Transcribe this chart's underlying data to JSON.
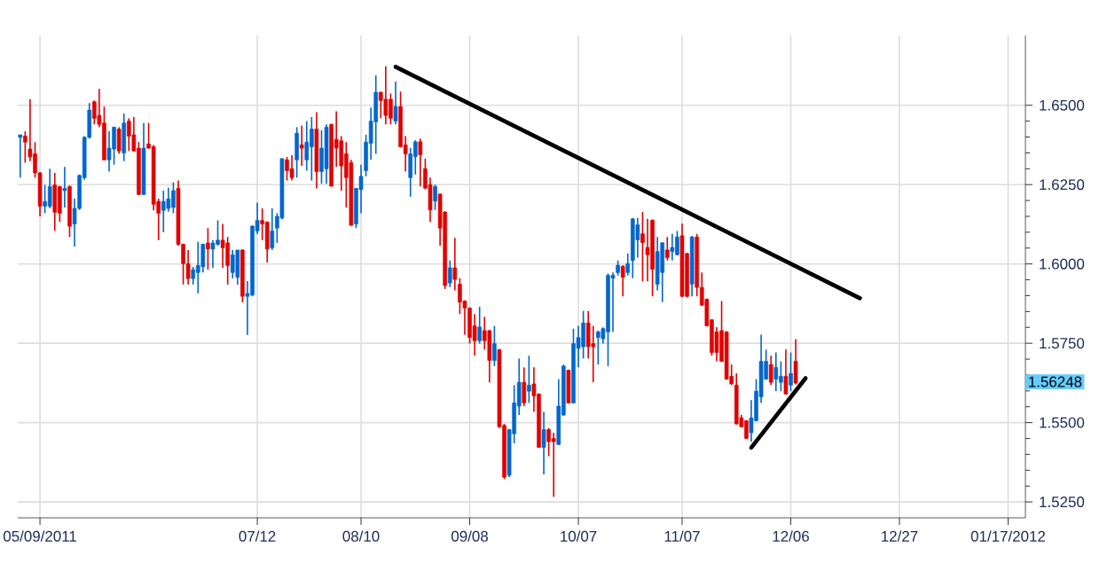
{
  "chart_data": {
    "type": "candlestick",
    "categories": [
      null,
      null,
      null,
      null,
      "05/09/2011",
      null,
      null,
      null,
      null,
      null,
      null,
      null,
      null,
      null,
      null,
      null,
      null,
      null,
      null,
      null,
      null,
      null,
      null,
      null,
      null,
      null,
      null,
      null,
      null,
      null,
      null,
      null,
      null,
      null,
      null,
      null,
      null,
      null,
      null,
      null,
      null,
      null,
      null,
      null,
      null,
      null,
      null,
      null,
      "07/12",
      null,
      null,
      null,
      null,
      null,
      null,
      null,
      null,
      null,
      null,
      null,
      null,
      null,
      null,
      null,
      null,
      null,
      null,
      null,
      null,
      "08/10",
      null,
      null,
      null,
      null,
      null,
      null,
      null,
      null,
      null,
      null,
      null,
      null,
      null,
      null,
      null,
      null,
      null,
      null,
      null,
      null,
      null,
      "09/08",
      null,
      null,
      null,
      null,
      null,
      null,
      null,
      null,
      null,
      null,
      null,
      null,
      null,
      null,
      null,
      null,
      null,
      null,
      null,
      null,
      null,
      "10/07",
      null,
      null,
      null,
      null,
      null,
      null,
      null,
      null,
      null,
      null,
      null,
      null,
      null,
      null,
      null,
      null,
      null,
      null,
      null,
      null,
      "11/07",
      null,
      null,
      null,
      null,
      null,
      null,
      null,
      null,
      null,
      null,
      null,
      null,
      null,
      null,
      null,
      null,
      null,
      null,
      null,
      null,
      null,
      "12/06",
      null,
      null,
      null,
      null,
      null,
      null,
      null,
      null,
      null,
      null,
      null,
      null,
      null,
      null,
      null,
      null,
      null,
      null,
      null,
      null,
      null,
      "12/27",
      null,
      null,
      null,
      null,
      null,
      null,
      null,
      null,
      null,
      null,
      null,
      null,
      null,
      null,
      null,
      null,
      null,
      null,
      null,
      null,
      null,
      "01/17/2012",
      null,
      null,
      null
    ],
    "ohlc": [
      [
        1.6399,
        1.6407,
        1.6272,
        1.6407
      ],
      [
        1.6403,
        1.6418,
        1.6319,
        1.6384
      ],
      [
        1.6362,
        1.6519,
        1.6324,
        1.6337
      ],
      [
        1.6347,
        1.6384,
        1.6272,
        1.6287
      ],
      [
        1.6287,
        1.629,
        1.615,
        1.6182
      ],
      [
        1.6182,
        1.6249,
        1.616,
        1.6197
      ],
      [
        1.6182,
        1.63,
        1.6175,
        1.6244
      ],
      [
        1.6249,
        1.6287,
        1.6104,
        1.6163
      ],
      [
        1.6244,
        1.6246,
        1.6132,
        1.616
      ],
      [
        1.6231,
        1.6306,
        1.6178,
        1.6238
      ],
      [
        1.6244,
        1.6247,
        1.6085,
        1.6119
      ],
      [
        1.6126,
        1.6206,
        1.6055,
        1.6175
      ],
      [
        1.6175,
        1.6282,
        1.617,
        1.6279
      ],
      [
        1.6272,
        1.6403,
        1.6265,
        1.6399
      ],
      [
        1.6399,
        1.6507,
        1.6395,
        1.6485
      ],
      [
        1.6511,
        1.6515,
        1.644,
        1.6459
      ],
      [
        1.6468,
        1.6552,
        1.6431,
        1.644
      ],
      [
        1.6444,
        1.6496,
        1.6326,
        1.6328
      ],
      [
        1.6328,
        1.6418,
        1.6291,
        1.6365
      ],
      [
        1.6362,
        1.6433,
        1.6313,
        1.6431
      ],
      [
        1.6425,
        1.6431,
        1.6347,
        1.6356
      ],
      [
        1.635,
        1.6474,
        1.6324,
        1.6444
      ],
      [
        1.645,
        1.6459,
        1.6356,
        1.6403
      ],
      [
        1.6407,
        1.6463,
        1.6354,
        1.6356
      ],
      [
        1.6365,
        1.6384,
        1.6217,
        1.6219
      ],
      [
        1.6219,
        1.6444,
        1.6217,
        1.6365
      ],
      [
        1.6378,
        1.6444,
        1.6363,
        1.6365
      ],
      [
        1.6369,
        1.6375,
        1.6169,
        1.6188
      ],
      [
        1.6197,
        1.6206,
        1.6075,
        1.616
      ],
      [
        1.6169,
        1.6231,
        1.61,
        1.6197
      ],
      [
        1.6175,
        1.624,
        1.6165,
        1.6205
      ],
      [
        1.6178,
        1.6257,
        1.616,
        1.6231
      ],
      [
        1.6238,
        1.6263,
        1.6057,
        1.6062
      ],
      [
        1.6062,
        1.6064,
        1.5935,
        1.6001
      ],
      [
        1.6001,
        1.6044,
        1.5935,
        1.5954
      ],
      [
        1.5954,
        1.5991,
        1.5935,
        1.5982
      ],
      [
        1.5973,
        1.607,
        1.5907,
        1.5995
      ],
      [
        1.5991,
        1.6064,
        1.5973,
        1.6062
      ],
      [
        1.6066,
        1.6113,
        1.5982,
        1.6047
      ],
      [
        1.6047,
        1.6075,
        1.5988,
        1.6066
      ],
      [
        1.6062,
        1.6137,
        1.6057,
        1.6075
      ],
      [
        1.6075,
        1.6126,
        1.5988,
        1.6051
      ],
      [
        1.6066,
        1.6085,
        1.5935,
        1.5995
      ],
      [
        1.5973,
        1.6044,
        1.5954,
        1.6029
      ],
      [
        1.5958,
        1.6044,
        1.5935,
        1.6044
      ],
      [
        1.6044,
        1.6046,
        1.5879,
        1.5898
      ],
      [
        1.5898,
        1.5946,
        1.5776,
        1.5907
      ],
      [
        1.5902,
        1.6122,
        1.5898,
        1.6119
      ],
      [
        1.6104,
        1.6193,
        1.6094,
        1.6137
      ],
      [
        1.6137,
        1.6175,
        1.6075,
        1.6126
      ],
      [
        1.6132,
        1.6134,
        1.6004,
        1.6047
      ],
      [
        1.6051,
        1.6175,
        1.6044,
        1.6104
      ],
      [
        1.6113,
        1.616,
        1.6066,
        1.615
      ],
      [
        1.6145,
        1.6332,
        1.614,
        1.6332
      ],
      [
        1.6328,
        1.6337,
        1.6263,
        1.6294
      ],
      [
        1.63,
        1.6343,
        1.6263,
        1.6272
      ],
      [
        1.6328,
        1.6431,
        1.6272,
        1.6412
      ],
      [
        1.6375,
        1.6436,
        1.6309,
        1.6365
      ],
      [
        1.6328,
        1.645,
        1.6294,
        1.6384
      ],
      [
        1.6369,
        1.6463,
        1.6263,
        1.6425
      ],
      [
        1.6425,
        1.6478,
        1.6238,
        1.6291
      ],
      [
        1.6291,
        1.6421,
        1.6253,
        1.6365
      ],
      [
        1.63,
        1.644,
        1.6253,
        1.6431
      ],
      [
        1.644,
        1.6442,
        1.6244,
        1.6245
      ],
      [
        1.6393,
        1.6481,
        1.6306,
        1.6365
      ],
      [
        1.6388,
        1.6403,
        1.6231,
        1.6309
      ],
      [
        1.6347,
        1.6384,
        1.6178,
        1.6272
      ],
      [
        1.6319,
        1.6328,
        1.612,
        1.6122
      ],
      [
        1.6126,
        1.624,
        1.6113,
        1.6238
      ],
      [
        1.6234,
        1.6313,
        1.616,
        1.6276
      ],
      [
        1.6294,
        1.6407,
        1.6276,
        1.6384
      ],
      [
        1.638,
        1.6493,
        1.6328,
        1.645
      ],
      [
        1.6448,
        1.6594,
        1.6347,
        1.6541
      ],
      [
        1.6541,
        1.6543,
        1.6459,
        1.6515
      ],
      [
        1.6519,
        1.6623,
        1.644,
        1.6468
      ],
      [
        1.6519,
        1.6537,
        1.644,
        1.6459
      ],
      [
        1.645,
        1.6575,
        1.644,
        1.6496
      ],
      [
        1.6496,
        1.6543,
        1.6367,
        1.6369
      ],
      [
        1.6375,
        1.6403,
        1.6291,
        1.6347
      ],
      [
        1.6272,
        1.6365,
        1.6212,
        1.6347
      ],
      [
        1.6338,
        1.639,
        1.6282,
        1.6385
      ],
      [
        1.6385,
        1.6395,
        1.6244,
        1.6344
      ],
      [
        1.63,
        1.6332,
        1.6235,
        1.6239
      ],
      [
        1.625,
        1.6272,
        1.6132,
        1.617
      ],
      [
        1.6198,
        1.625,
        1.617,
        1.6244
      ],
      [
        1.622,
        1.6222,
        1.6057,
        1.6113
      ],
      [
        1.6164,
        1.6166,
        1.5921,
        1.5932
      ],
      [
        1.594,
        1.6011,
        1.5927,
        1.5988
      ],
      [
        1.5988,
        1.6082,
        1.5917,
        1.5951
      ],
      [
        1.5936,
        1.5955,
        1.5842,
        1.588
      ],
      [
        1.5883,
        1.5885,
        1.5777,
        1.5861
      ],
      [
        1.5861,
        1.5863,
        1.5749,
        1.5768
      ],
      [
        1.5805,
        1.5842,
        1.5711,
        1.5758
      ],
      [
        1.5758,
        1.5865,
        1.5749,
        1.5801
      ],
      [
        1.579,
        1.5833,
        1.573,
        1.5758
      ],
      [
        1.579,
        1.5792,
        1.5627,
        1.5696
      ],
      [
        1.5696,
        1.5805,
        1.5678,
        1.5749
      ],
      [
        1.573,
        1.5732,
        1.5483,
        1.5487
      ],
      [
        1.5491,
        1.5496,
        1.5322,
        1.5328
      ],
      [
        1.5334,
        1.548,
        1.5328,
        1.5478
      ],
      [
        1.5465,
        1.5618,
        1.5435,
        1.5562
      ],
      [
        1.5552,
        1.5702,
        1.5524,
        1.5627
      ],
      [
        1.5627,
        1.5674,
        1.5552,
        1.5562
      ],
      [
        1.5599,
        1.5711,
        1.5562,
        1.5618
      ],
      [
        1.5622,
        1.5674,
        1.5534,
        1.5584
      ],
      [
        1.559,
        1.5592,
        1.542,
        1.5422
      ],
      [
        1.5422,
        1.5534,
        1.5337,
        1.5478
      ],
      [
        1.5478,
        1.5483,
        1.5394,
        1.544
      ],
      [
        1.545,
        1.5468,
        1.5266,
        1.544
      ],
      [
        1.5431,
        1.5637,
        1.5429,
        1.5552
      ],
      [
        1.5524,
        1.5683,
        1.5521,
        1.5678
      ],
      [
        1.5665,
        1.5667,
        1.556,
        1.5562
      ],
      [
        1.5562,
        1.5796,
        1.556,
        1.5749
      ],
      [
        1.5734,
        1.5805,
        1.5674,
        1.5768
      ],
      [
        1.5739,
        1.5852,
        1.5702,
        1.5814
      ],
      [
        1.5814,
        1.5852,
        1.5702,
        1.5739
      ],
      [
        1.5749,
        1.5805,
        1.5627,
        1.5739
      ],
      [
        1.5768,
        1.579,
        1.5683,
        1.5786
      ],
      [
        1.5764,
        1.58,
        1.5749,
        1.5796
      ],
      [
        1.5786,
        1.597,
        1.5678,
        1.5964
      ],
      [
        1.5955,
        1.5973,
        1.5786,
        1.5964
      ],
      [
        1.5973,
        1.6011,
        1.5964,
        1.5996
      ],
      [
        1.5992,
        1.5996,
        1.5898,
        1.5958
      ],
      [
        1.5973,
        1.6033,
        1.5964,
        1.6001
      ],
      [
        1.6011,
        1.6145,
        1.5955,
        1.6142
      ],
      [
        1.6076,
        1.6145,
        1.602,
        1.6123
      ],
      [
        1.6095,
        1.6164,
        1.5945,
        1.6067
      ],
      [
        1.6052,
        1.6142,
        1.5945,
        1.6029
      ],
      [
        1.6138,
        1.614,
        1.5898,
        1.5983
      ],
      [
        1.5936,
        1.6085,
        1.5917,
        1.6039
      ],
      [
        1.5973,
        1.6067,
        1.588,
        1.6067
      ],
      [
        1.6044,
        1.6085,
        1.6011,
        1.602
      ],
      [
        1.6039,
        1.6095,
        1.6011,
        1.6052
      ],
      [
        1.6029,
        1.6104,
        1.6027,
        1.6085
      ],
      [
        1.6089,
        1.6127,
        1.5896,
        1.5898
      ],
      [
        1.6033,
        1.6035,
        1.5894,
        1.5898
      ],
      [
        1.5936,
        1.6088,
        1.5898,
        1.6085
      ],
      [
        1.6085,
        1.6095,
        1.5898,
        1.5926
      ],
      [
        1.5926,
        1.5973,
        1.5868,
        1.587
      ],
      [
        1.5889,
        1.5891,
        1.5803,
        1.5805
      ],
      [
        1.5824,
        1.5826,
        1.5711,
        1.5721
      ],
      [
        1.5786,
        1.5801,
        1.5693,
        1.5721
      ],
      [
        1.579,
        1.5883,
        1.5691,
        1.5693
      ],
      [
        1.5786,
        1.5788,
        1.5635,
        1.5637
      ],
      [
        1.5646,
        1.5683,
        1.5618,
        1.5622
      ],
      [
        1.5618,
        1.5655,
        1.5494,
        1.5496
      ],
      [
        1.5515,
        1.5524,
        1.5485,
        1.5487
      ],
      [
        1.5506,
        1.5508,
        1.5448,
        1.545
      ],
      [
        1.5468,
        1.5571,
        1.544,
        1.5515
      ],
      [
        1.5506,
        1.5637,
        1.5504,
        1.5599
      ],
      [
        1.5581,
        1.5777,
        1.5562,
        1.5693
      ],
      [
        1.5637,
        1.573,
        1.5635,
        1.5693
      ],
      [
        1.5683,
        1.5711,
        1.5618,
        1.5627
      ],
      [
        1.5637,
        1.5721,
        1.5599,
        1.5674
      ],
      [
        1.5627,
        1.5693,
        1.5599,
        1.5646
      ],
      [
        1.5646,
        1.573,
        1.5588,
        1.559
      ],
      [
        1.5618,
        1.5721,
        1.5599,
        1.5655
      ],
      [
        1.5693,
        1.5763,
        1.562,
        1.56248
      ],
      null,
      null,
      null,
      null,
      null,
      null,
      null,
      null,
      null,
      null,
      null,
      null,
      null,
      null,
      null,
      null,
      null,
      null,
      null,
      null,
      null,
      null,
      null,
      null,
      null,
      null,
      null,
      null,
      null,
      null,
      null,
      null,
      null,
      null,
      null,
      null,
      null,
      null,
      null,
      null,
      null,
      null,
      null,
      null,
      null,
      null
    ],
    "colors": [
      "#0066cc",
      "#e00000",
      "#e00000",
      "#e00000",
      "#e00000",
      "#0066cc",
      "#0066cc",
      "#e00000",
      "#e00000",
      "#0066cc",
      "#e00000",
      "#0066cc",
      "#0066cc",
      "#0066cc",
      "#0066cc",
      "#e00000",
      "#e00000",
      "#e00000",
      "#0066cc",
      "#0066cc",
      "#e00000",
      "#0066cc",
      "#e00000",
      "#e00000",
      "#e00000",
      "#0066cc",
      "#e00000",
      "#e00000",
      "#e00000",
      "#0066cc",
      "#0066cc",
      "#0066cc",
      "#e00000",
      "#e00000",
      "#e00000",
      "#0066cc",
      "#0066cc",
      "#0066cc",
      "#e00000",
      "#0066cc",
      "#0066cc",
      "#e00000",
      "#e00000",
      "#0066cc",
      "#0066cc",
      "#e00000",
      "#0066cc",
      "#0066cc",
      "#0066cc",
      "#e00000",
      "#e00000",
      "#0066cc",
      "#0066cc",
      "#0066cc",
      "#e00000",
      "#e00000",
      "#0066cc",
      "#e00000",
      "#0066cc",
      "#0066cc",
      "#e00000",
      "#0066cc",
      "#0066cc",
      "#e00000",
      "#e00000",
      "#e00000",
      "#e00000",
      "#e00000",
      "#0066cc",
      "#0066cc",
      "#0066cc",
      "#0066cc",
      "#0066cc",
      "#e00000",
      "#e00000",
      "#e00000",
      "#0066cc",
      "#e00000",
      "#e00000",
      "#0066cc",
      "#0066cc",
      "#e00000",
      "#e00000",
      "#e00000",
      "#0066cc",
      "#e00000",
      "#e00000",
      "#0066cc",
      "#e00000",
      "#e00000",
      "#e00000",
      "#e00000",
      "#e00000",
      "#0066cc",
      "#e00000",
      "#e00000",
      "#0066cc",
      "#e00000",
      "#e00000",
      "#0066cc",
      "#0066cc",
      "#0066cc",
      "#e00000",
      "#0066cc",
      "#e00000",
      "#e00000",
      "#0066cc",
      "#e00000",
      "#e00000",
      "#0066cc",
      "#0066cc",
      "#e00000",
      "#0066cc",
      "#0066cc",
      "#0066cc",
      "#e00000",
      "#e00000",
      "#0066cc",
      "#0066cc",
      "#0066cc",
      "#0066cc",
      "#0066cc",
      "#e00000",
      "#0066cc",
      "#0066cc",
      "#0066cc",
      "#e00000",
      "#e00000",
      "#e00000",
      "#0066cc",
      "#0066cc",
      "#e00000",
      "#0066cc",
      "#0066cc",
      "#e00000",
      "#e00000",
      "#0066cc",
      "#e00000",
      "#e00000",
      "#e00000",
      "#e00000",
      "#e00000",
      "#e00000",
      "#e00000",
      "#e00000",
      "#e00000",
      "#e00000",
      "#e00000",
      "#0066cc",
      "#0066cc",
      "#0066cc",
      "#0066cc",
      "#e00000",
      "#0066cc",
      "#0066cc",
      "#e00000",
      "#0066cc",
      "#e00000",
      null,
      null,
      null,
      null,
      null,
      null,
      null,
      null,
      null,
      null,
      null,
      null,
      null,
      null,
      null,
      null,
      null,
      null,
      null,
      null,
      null,
      null,
      null,
      null,
      null,
      null,
      null,
      null,
      null,
      null,
      null,
      null,
      null,
      null,
      null,
      null,
      null,
      null,
      null,
      null,
      null,
      null,
      null,
      null,
      null,
      null
    ],
    "series": [
      {
        "type": "line",
        "color": "#000000",
        "values": [
          null,
          null,
          null,
          null,
          null,
          null,
          null,
          null,
          null,
          null,
          null,
          null,
          null,
          null,
          null,
          null,
          null,
          null,
          null,
          null,
          null,
          null,
          null,
          null,
          null,
          null,
          null,
          null,
          null,
          null,
          null,
          null,
          null,
          null,
          null,
          null,
          null,
          null,
          null,
          null,
          null,
          null,
          null,
          null,
          null,
          null,
          null,
          null,
          null,
          null,
          null,
          null,
          null,
          null,
          null,
          null,
          null,
          null,
          null,
          null,
          null,
          null,
          null,
          null,
          null,
          null,
          null,
          null,
          null,
          null,
          null,
          null,
          null,
          null,
          null,
          null,
          1.6621,
          null,
          null,
          null,
          null,
          null,
          null,
          null,
          null,
          null,
          null,
          null,
          null,
          null,
          null,
          null,
          null,
          null,
          null,
          null,
          null,
          null,
          null,
          null,
          null,
          null,
          null,
          null,
          null,
          null,
          null,
          null,
          null,
          null,
          null,
          null,
          null,
          null,
          null,
          null,
          null,
          null,
          null,
          null,
          null,
          null,
          null,
          null,
          null,
          null,
          null,
          null,
          null,
          null,
          null,
          null,
          null,
          null,
          null,
          null,
          null,
          null,
          null,
          null,
          null,
          null,
          null,
          null,
          null,
          null,
          null,
          null,
          null,
          null,
          null,
          null,
          null,
          null,
          null,
          null,
          null,
          null,
          null,
          null,
          null,
          null,
          null,
          null,
          null,
          null,
          null,
          null,
          null,
          null,
          1.5892,
          null,
          null,
          null,
          null,
          null,
          null,
          null,
          null,
          null,
          null,
          null,
          null,
          null,
          null,
          null,
          null,
          null,
          null,
          null,
          null,
          null,
          null,
          null,
          null,
          null,
          null,
          null,
          null,
          null,
          null,
          null,
          null,
          null
        ]
      },
      {
        "type": "line",
        "color": "#000000",
        "values": [
          null,
          null,
          null,
          null,
          null,
          null,
          null,
          null,
          null,
          null,
          null,
          null,
          null,
          null,
          null,
          null,
          null,
          null,
          null,
          null,
          null,
          null,
          null,
          null,
          null,
          null,
          null,
          null,
          null,
          null,
          null,
          null,
          null,
          null,
          null,
          null,
          null,
          null,
          null,
          null,
          null,
          null,
          null,
          null,
          null,
          null,
          null,
          null,
          null,
          null,
          null,
          null,
          null,
          null,
          null,
          null,
          null,
          null,
          null,
          null,
          null,
          null,
          null,
          null,
          null,
          null,
          null,
          null,
          null,
          null,
          null,
          null,
          null,
          null,
          null,
          null,
          null,
          null,
          null,
          null,
          null,
          null,
          null,
          null,
          null,
          null,
          null,
          null,
          null,
          null,
          null,
          null,
          null,
          null,
          null,
          null,
          null,
          null,
          null,
          null,
          null,
          null,
          null,
          null,
          null,
          null,
          null,
          null,
          null,
          null,
          null,
          null,
          null,
          null,
          null,
          null,
          null,
          null,
          null,
          null,
          null,
          null,
          null,
          null,
          null,
          null,
          null,
          null,
          null,
          null,
          null,
          null,
          null,
          null,
          null,
          null,
          null,
          null,
          null,
          null,
          null,
          null,
          null,
          null,
          null,
          null,
          null,
          null,
          1.5421,
          null,
          null,
          null,
          null,
          null,
          null,
          null,
          null,
          null,
          null,
          1.564,
          null,
          null,
          null,
          null,
          null,
          null,
          null,
          null,
          null,
          null,
          null,
          null,
          null,
          null,
          null,
          null,
          null,
          null,
          null,
          null,
          null,
          null,
          null,
          null,
          null,
          null,
          null,
          null,
          null,
          null,
          null,
          null,
          null,
          null,
          null,
          null,
          null,
          null,
          null,
          null,
          null,
          null,
          null,
          null
        ]
      }
    ],
    "ylim": [
      1.52,
      1.672
    ],
    "yticks": [
      {
        "value": 1.525,
        "label": "1.5250"
      },
      {
        "value": 1.55,
        "label": "1.5500"
      },
      {
        "value": 1.575,
        "label": "1.5750"
      },
      {
        "value": 1.6,
        "label": "1.6000"
      },
      {
        "value": 1.625,
        "label": "1.6250"
      },
      {
        "value": 1.65,
        "label": "1.6500"
      }
    ],
    "grid": true,
    "annotations": [
      "1.56248"
    ]
  }
}
